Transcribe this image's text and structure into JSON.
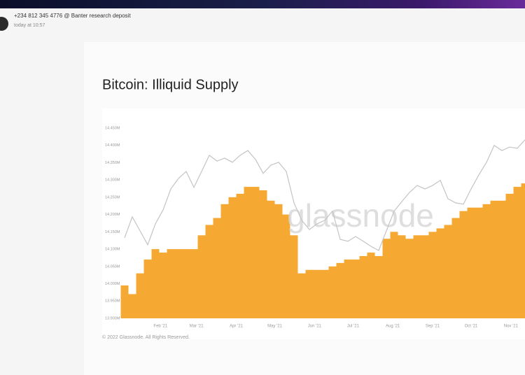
{
  "header": {
    "sender": "+234 812 345 4776 @ Banter research deposit",
    "time": "today at 10:57"
  },
  "chart_data": {
    "type": "bar",
    "title": "Bitcoin: Illiquid Supply",
    "watermark": "glassnode",
    "footer": "© 2022 Glassnode. All Rights Reserved.",
    "x": [
      4,
      10,
      16,
      22,
      28,
      34,
      40,
      46,
      52,
      58,
      64,
      70,
      76,
      82,
      88,
      94,
      100,
      106,
      112,
      118,
      124,
      130,
      136,
      142,
      148,
      154,
      160,
      166,
      172,
      178,
      184,
      190,
      196,
      202,
      208,
      214,
      220,
      226,
      232,
      238,
      244,
      250,
      256,
      262,
      268,
      274,
      280,
      286,
      292,
      298,
      304,
      310,
      316
    ],
    "xlim": [
      4,
      316
    ],
    "xticks": [
      {
        "value": 32,
        "label": "Feb '21"
      },
      {
        "value": 60,
        "label": "Mar '21"
      },
      {
        "value": 91,
        "label": "Apr '21"
      },
      {
        "value": 121,
        "label": "May '21"
      },
      {
        "value": 152,
        "label": "Jun '21"
      },
      {
        "value": 182,
        "label": "Jul '21"
      },
      {
        "value": 213,
        "label": "Aug '21"
      },
      {
        "value": 244,
        "label": "Sep '21"
      },
      {
        "value": 274,
        "label": "Oct '21"
      },
      {
        "value": 305,
        "label": "Nov '21"
      }
    ],
    "ylim": [
      13900000,
      14450000
    ],
    "yticks": [
      {
        "value": 13900000,
        "label": "13.900M"
      },
      {
        "value": 13950000,
        "label": "13.950M"
      },
      {
        "value": 14000000,
        "label": "14.000M"
      },
      {
        "value": 14050000,
        "label": "14.050M"
      },
      {
        "value": 14100000,
        "label": "14.100M"
      },
      {
        "value": 14150000,
        "label": "14.150M"
      },
      {
        "value": 14200000,
        "label": "14.200M"
      },
      {
        "value": 14250000,
        "label": "14.250M"
      },
      {
        "value": 14300000,
        "label": "14.300M"
      },
      {
        "value": 14350000,
        "label": "14.350M"
      },
      {
        "value": 14400000,
        "label": "14.400M"
      },
      {
        "value": 14450000,
        "label": "14.450M"
      }
    ],
    "y2lim": [
      10000,
      70000
    ],
    "grid": false,
    "series": [
      {
        "type": "bar",
        "color": "#f5a a33",
        "values": [
          13995000,
          13970000,
          14030000,
          14070000,
          14100000,
          14090000,
          14100000,
          14100000,
          14100000,
          14100000,
          14140000,
          14170000,
          14190000,
          14230000,
          14250000,
          14260000,
          14280000,
          14280000,
          14270000,
          14240000,
          14230000,
          14200000,
          14140000,
          14030000,
          14040000,
          14040000,
          14040000,
          14050000,
          14060000,
          14070000,
          14070000,
          14080000,
          14090000,
          14080000,
          14130000,
          14150000,
          14140000,
          14130000,
          14140000,
          14140000,
          14150000,
          14160000,
          14170000,
          14190000,
          14210000,
          14220000,
          14220000,
          14230000,
          14240000,
          14240000,
          14260000,
          14280000,
          14290000
        ]
      },
      {
        "type": "line",
        "axis": "y2",
        "color": "#c4c4c4",
        "values": [
          35400,
          42000,
          37600,
          33200,
          39800,
          44200,
          50800,
          54100,
          56300,
          51300,
          56300,
          61400,
          59600,
          60500,
          59200,
          61400,
          62900,
          60100,
          55700,
          58300,
          59200,
          56300,
          46400,
          40900,
          38000,
          39800,
          40900,
          43800,
          34900,
          34300,
          35800,
          34300,
          32700,
          31400,
          37600,
          43800,
          46800,
          49700,
          51900,
          50800,
          51900,
          53500,
          47700,
          46400,
          46000,
          50800,
          55200,
          59200,
          64500,
          62900,
          64000,
          63600,
          66300
        ]
      }
    ]
  }
}
